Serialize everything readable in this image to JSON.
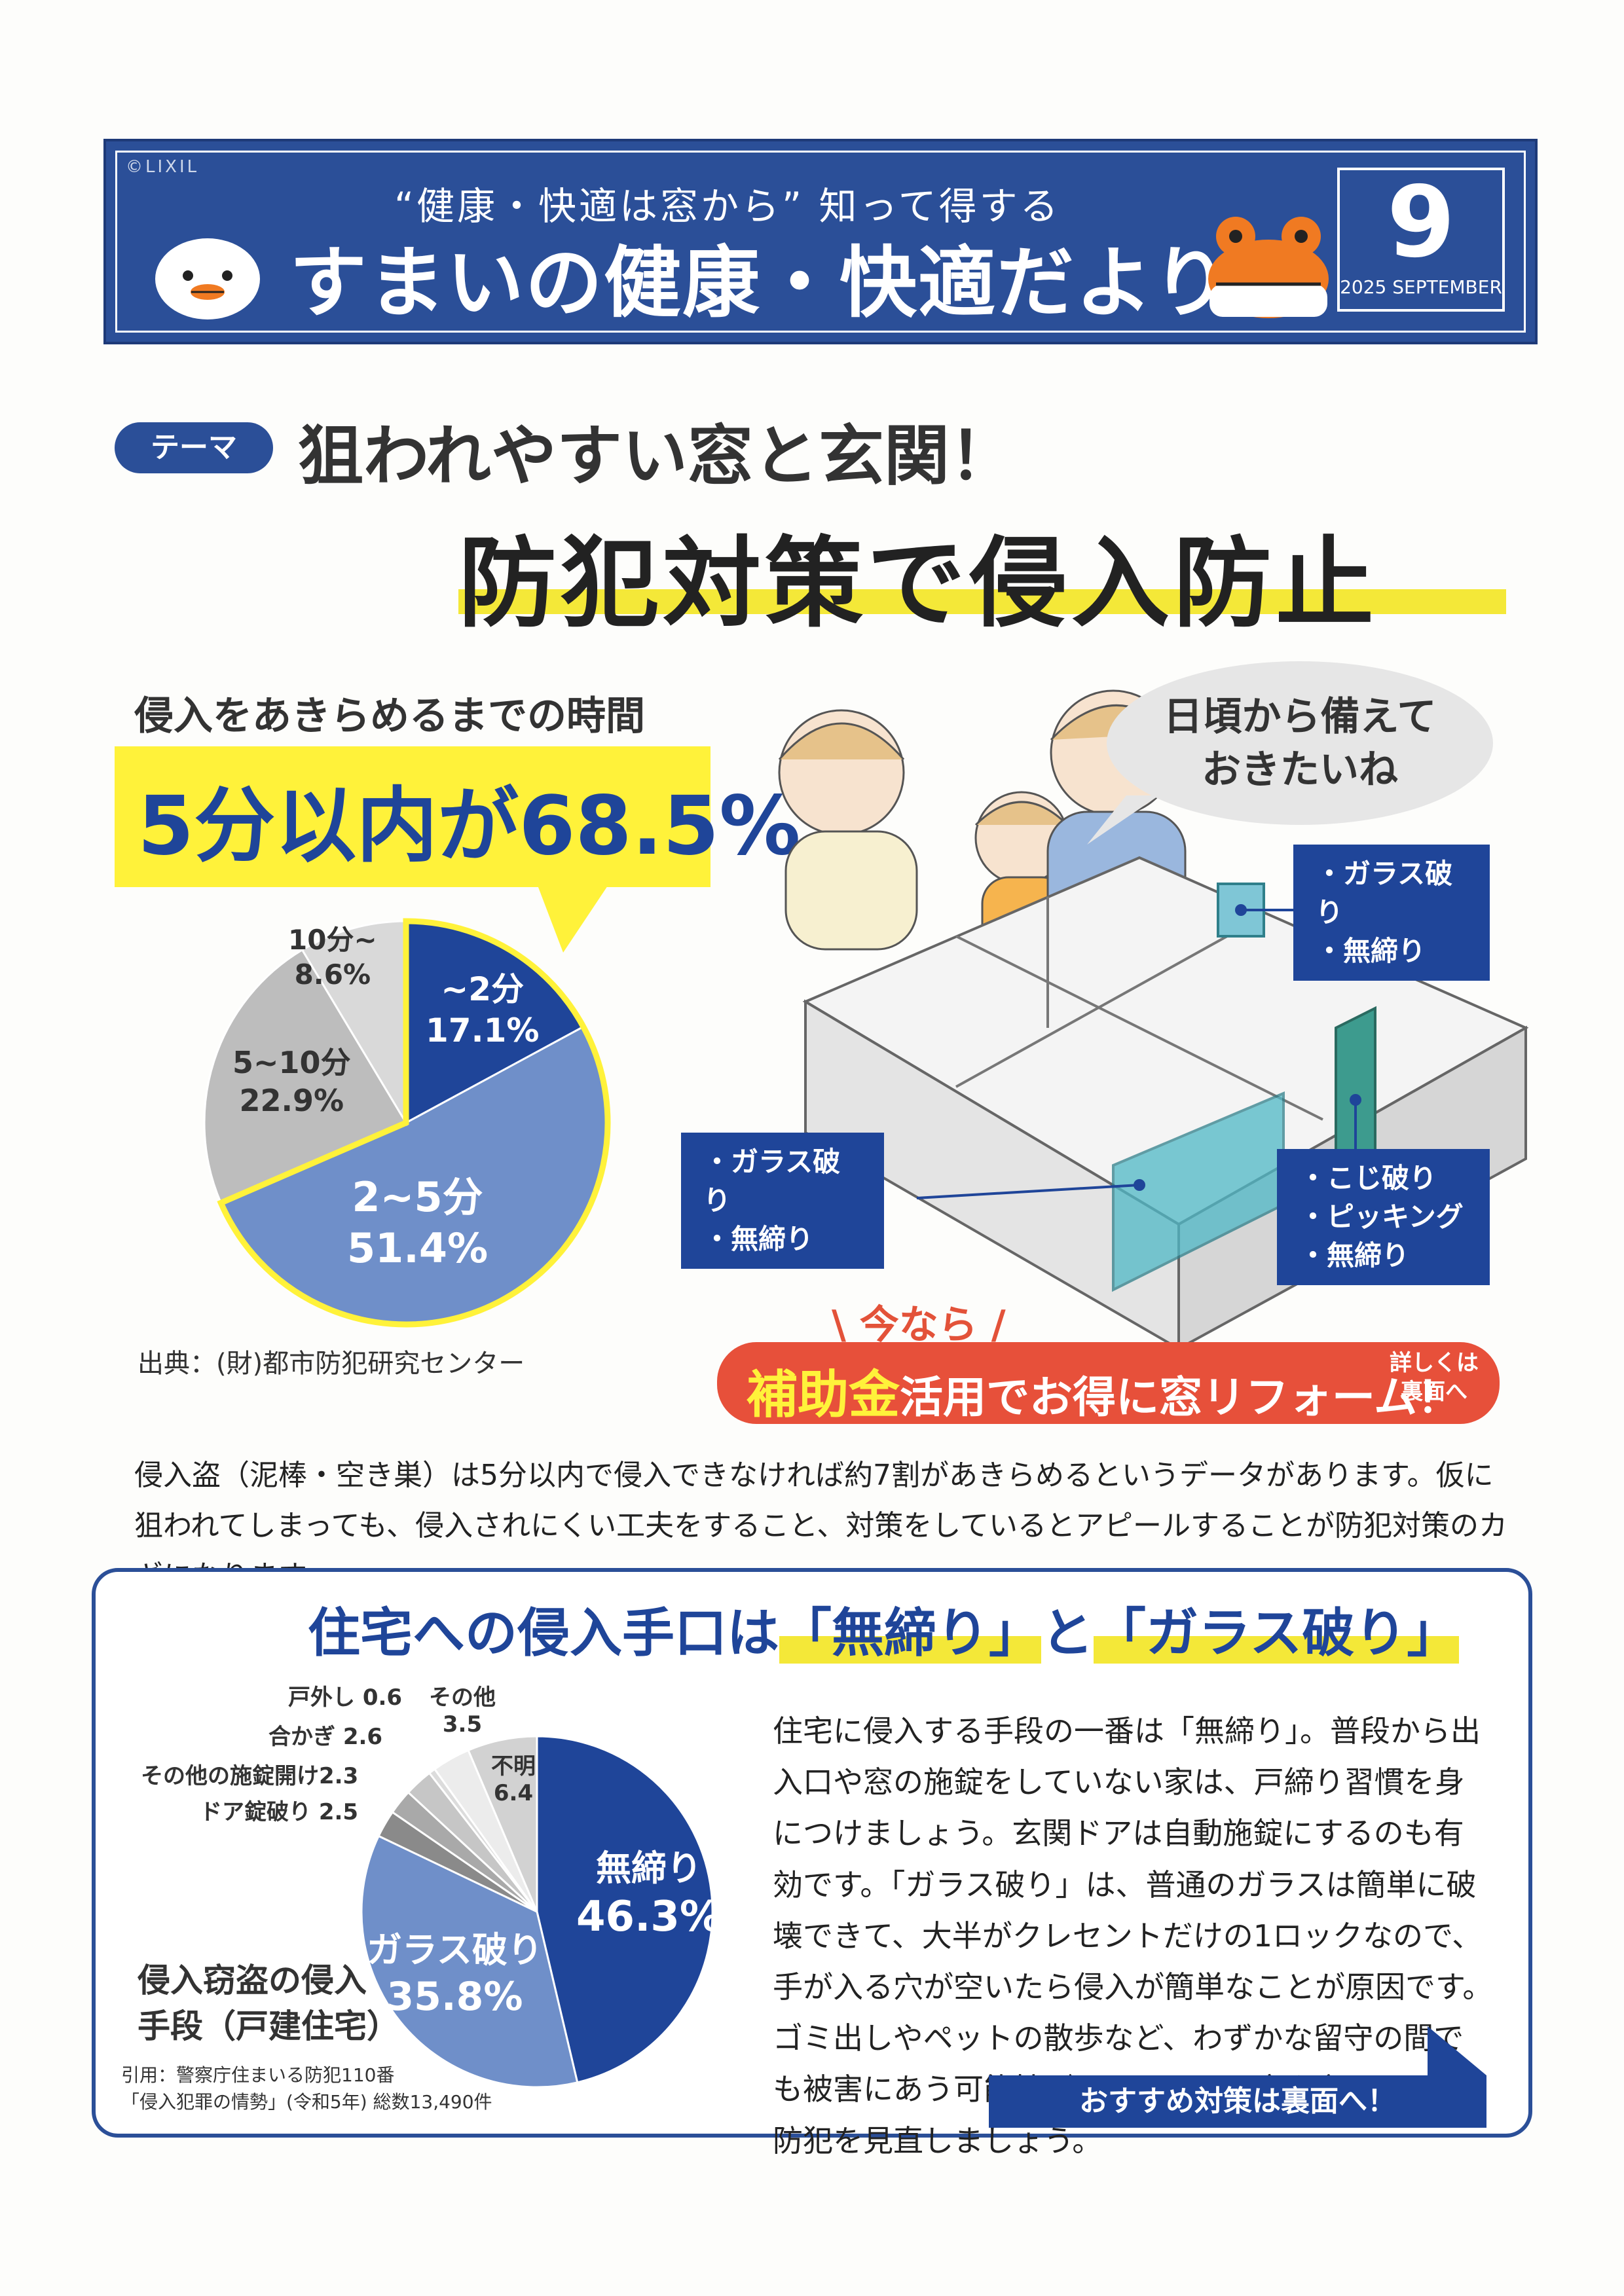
{
  "header": {
    "brand": "©LIXIL",
    "subtitle": "“健康・快適は窓から” 知って得する",
    "title": "すまいの健康・快適だより",
    "month": "9",
    "month_label": "2025 SEPTEMBER"
  },
  "theme": {
    "tag": "テーマ",
    "line1": "狙われやすい窓と玄関！",
    "line2": "防犯対策で侵入防止"
  },
  "time_chart": {
    "title": "侵入をあきらめるまでの時間",
    "highlight": "5分以内が68.5%",
    "source": "出典：(財)都市防犯研究センター",
    "labels": [
      {
        "name": "~2分",
        "pct": "17.1%"
      },
      {
        "name": "2~5分",
        "pct": "51.4%"
      },
      {
        "name": "5~10分",
        "pct": "22.9%"
      },
      {
        "name": "10分~",
        "pct": "8.6%"
      }
    ]
  },
  "illustration": {
    "speech": "日頃から備えて\nおきたいね",
    "callout_window_top": "・ガラス破り\n・無締り",
    "callout_window_left": "・ガラス破り\n・無締り",
    "callout_door": "・こじ破り\n・ピッキング\n・無締り"
  },
  "banner": {
    "now": "\\ 今なら /",
    "big": "補助金",
    "rest": "活用でお得に窓リフォーム！",
    "detail": "詳しくは\n裏面へ"
  },
  "intro": "侵入盗（泥棒・空き巣）は5分以内で侵入できなければ約7割があきらめるというデータがあります。仮に狙われてしまっても、侵入されにくい工夫をすること、対策をしているとアピールすることが防犯対策のカギになります。",
  "methods": {
    "title_pre": "住宅への侵入手口は",
    "title_a": "「無締り」",
    "title_mid": "と",
    "title_b": "「ガラス破り」",
    "body": "住宅に侵入する手段の一番は「無締り」。普段から出入口や窓の施錠をしていない家は、戸締り習慣を身につけましょう。玄関ドアは自動施錠にするのも有効です。「ガラス破り」は、普通のガラスは簡単に破壊できて、大半がクレセントだけの1ロックなので、手が入る穴が空いたら侵入が簡単なことが原因です。ゴミ出しやペットの散歩など、わずかな留守の間でも被害にあう可能性がありますので窓や玄関ドアの防犯を見直しましょう。",
    "caption": "侵入窃盗の侵入\n手段（戸建住宅）",
    "source": "引用：警察庁住まいる防犯110番\n「侵入犯罪の情勢」(令和5年) 総数13,490件",
    "cta": "おすすめ対策は裏面へ！",
    "labels": {
      "mushimari": "無締り",
      "mushimari_pct": "46.3%",
      "glass": "ガラス破り",
      "glass_pct": "35.8%",
      "fumei": "不明\n6.4",
      "sonota": "その他\n3.5",
      "togaishi": "戸外し 0.6",
      "aikagi": "合かぎ 2.6",
      "sonota_sejo": "その他の施錠開け2.3",
      "doa": "ドア錠破り 2.5"
    }
  },
  "chart_data": [
    {
      "type": "pie",
      "title": "侵入をあきらめるまでの時間",
      "categories": [
        "~2分",
        "2~5分",
        "5~10分",
        "10分~"
      ],
      "values": [
        17.1,
        51.4,
        22.9,
        8.6
      ],
      "colors": [
        "#1f4599",
        "#6f8fc9",
        "#bdbdbd",
        "#d9d9d9"
      ]
    },
    {
      "type": "pie",
      "title": "侵入窃盗の侵入手段（戸建住宅）",
      "categories": [
        "無締り",
        "ガラス破り",
        "ドア錠破り",
        "その他の施錠開け",
        "合かぎ",
        "戸外し",
        "その他",
        "不明"
      ],
      "values": [
        46.3,
        35.8,
        2.5,
        2.3,
        2.6,
        0.6,
        3.5,
        6.4
      ],
      "colors": [
        "#1f4599",
        "#6f8fc9",
        "#8a8a8a",
        "#a9a9a9",
        "#c6c6c6",
        "#dcdcdc",
        "#ececec",
        "#d2d2d2"
      ]
    }
  ]
}
